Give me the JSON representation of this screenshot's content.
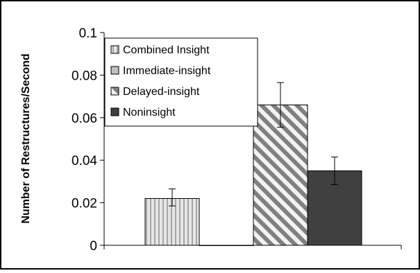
{
  "chart_data": {
    "type": "bar",
    "title": "",
    "xlabel": "",
    "ylabel": "Number of Restructures/Second",
    "ylim": [
      0,
      0.1
    ],
    "yticks": [
      {
        "value": 0,
        "label": "0"
      },
      {
        "value": 0.02,
        "label": "0.02"
      },
      {
        "value": 0.04,
        "label": "0.04"
      },
      {
        "value": 0.06,
        "label": "0.06"
      },
      {
        "value": 0.08,
        "label": "0.08"
      },
      {
        "value": 0.1,
        "label": "0.1"
      }
    ],
    "grid": false,
    "legend_position": "top-left",
    "series": [
      {
        "name": "Combined Insight",
        "value": 0.022,
        "error_low": 0.0185,
        "error_high": 0.0265,
        "pattern": "vertical-stripes",
        "color": "#d9d9d9"
      },
      {
        "name": "Immediate-insight",
        "value": 0.0,
        "error_low": 0.0,
        "error_high": 0.0,
        "pattern": "solid-light",
        "color": "#bfbfbf"
      },
      {
        "name": "Delayed-insight",
        "value": 0.066,
        "error_low": 0.0555,
        "error_high": 0.0765,
        "pattern": "diagonal-stripes",
        "color": "#808080"
      },
      {
        "name": "Noninsight",
        "value": 0.035,
        "error_low": 0.0285,
        "error_high": 0.0415,
        "pattern": "solid-dark",
        "color": "#404040"
      }
    ]
  }
}
